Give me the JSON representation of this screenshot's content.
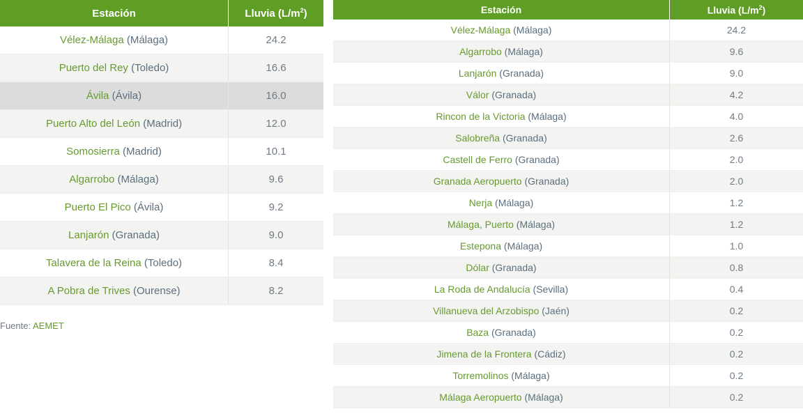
{
  "left_table": {
    "header": {
      "station": "Estación",
      "rain_prefix": "Lluvia (L/m",
      "rain_sup": "2",
      "rain_suffix": ")"
    },
    "rows": [
      {
        "station": "Vélez-Málaga",
        "province": "(Málaga)",
        "value": "24.2"
      },
      {
        "station": "Puerto del Rey",
        "province": "(Toledo)",
        "value": "16.6"
      },
      {
        "station": "Ávila",
        "province": "(Ávila)",
        "value": "16.0"
      },
      {
        "station": "Puerto Alto del León",
        "province": "(Madrid)",
        "value": "12.0"
      },
      {
        "station": "Somosierra",
        "province": "(Madrid)",
        "value": "10.1"
      },
      {
        "station": "Algarrobo",
        "province": "(Málaga)",
        "value": "9.6"
      },
      {
        "station": "Puerto El Pico",
        "province": "(Ávila)",
        "value": "9.2"
      },
      {
        "station": "Lanjarón",
        "province": "(Granada)",
        "value": "9.0"
      },
      {
        "station": "Talavera de la Reina",
        "province": "(Toledo)",
        "value": "8.4"
      },
      {
        "station": "A Pobra de Trives",
        "province": "(Ourense)",
        "value": "8.2"
      }
    ]
  },
  "source": {
    "label": "Fuente:",
    "name": "AEMET"
  },
  "right_table": {
    "header": {
      "station": "Estación",
      "rain_prefix": "Lluvia (L/m",
      "rain_sup": "2",
      "rain_suffix": ")"
    },
    "rows": [
      {
        "station": "Vélez-Málaga",
        "province": "(Málaga)",
        "value": "24.2"
      },
      {
        "station": "Algarrobo",
        "province": "(Málaga)",
        "value": "9.6"
      },
      {
        "station": "Lanjarón",
        "province": "(Granada)",
        "value": "9.0"
      },
      {
        "station": "Válor",
        "province": "(Granada)",
        "value": "4.2"
      },
      {
        "station": "Rincon de la Victoria",
        "province": "(Málaga)",
        "value": "4.0"
      },
      {
        "station": "Salobreña",
        "province": "(Granada)",
        "value": "2.6"
      },
      {
        "station": "Castell de Ferro",
        "province": "(Granada)",
        "value": "2.0"
      },
      {
        "station": "Granada Aeropuerto",
        "province": "(Granada)",
        "value": "2.0"
      },
      {
        "station": "Nerja",
        "province": "(Málaga)",
        "value": "1.2"
      },
      {
        "station": "Málaga, Puerto",
        "province": "(Málaga)",
        "value": "1.2"
      },
      {
        "station": "Estepona",
        "province": "(Málaga)",
        "value": "1.0"
      },
      {
        "station": "Dólar",
        "province": "(Granada)",
        "value": "0.8"
      },
      {
        "station": "La Roda de Andalucía",
        "province": "(Sevilla)",
        "value": "0.4"
      },
      {
        "station": "Villanueva del Arzobispo",
        "province": "(Jaén)",
        "value": "0.2"
      },
      {
        "station": "Baza",
        "province": "(Granada)",
        "value": "0.2"
      },
      {
        "station": "Jimena de la Frontera",
        "province": "(Cádiz)",
        "value": "0.2"
      },
      {
        "station": "Torremolinos",
        "province": "(Málaga)",
        "value": "0.2"
      },
      {
        "station": "Málaga Aeropuerto",
        "province": "(Málaga)",
        "value": "0.2"
      }
    ]
  },
  "colors": {
    "header_bg": "#5f9e25",
    "station_text": "#669a2e",
    "province_text": "#5b6e7e",
    "row_alt": "#f3f4f2",
    "row_highlight": "#dcdcdc"
  }
}
